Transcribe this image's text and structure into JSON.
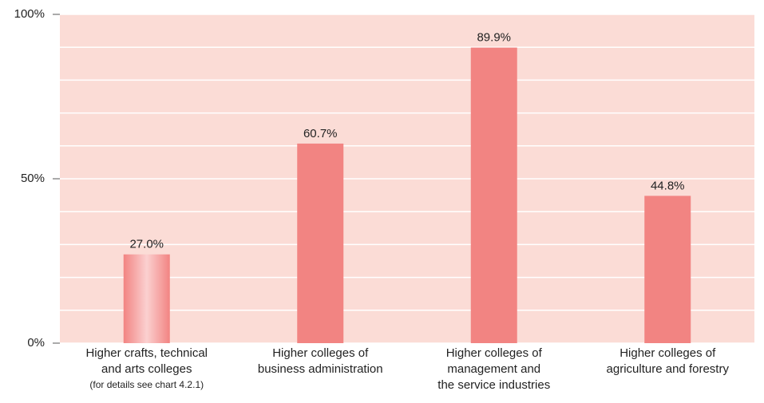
{
  "chart_data": {
    "type": "bar",
    "categories": [
      [
        "Higher crafts, technical",
        "and arts colleges"
      ],
      [
        "Higher colleges of",
        "business administration"
      ],
      [
        "Higher colleges of",
        "management and",
        "the service industries"
      ],
      [
        "Higher colleges of",
        "agriculture and forestry"
      ]
    ],
    "category_note": "(for details see chart 4.2.1)",
    "values": [
      27.0,
      60.7,
      89.9,
      44.8
    ],
    "value_labels": [
      "27.0%",
      "60.7%",
      "89.9%",
      "44.8%"
    ],
    "color": "#f28482",
    "highlight_color": "#fbd0d0",
    "background": "#fbdcd6",
    "ylim": [
      0,
      100
    ],
    "yticks": [
      {
        "value": 0,
        "label": "0%"
      },
      {
        "value": 50,
        "label": "50%"
      },
      {
        "value": 100,
        "label": "100%"
      }
    ],
    "minor_yticks": [
      10,
      20,
      30,
      40,
      60,
      70,
      80,
      90
    ],
    "grid": true
  }
}
